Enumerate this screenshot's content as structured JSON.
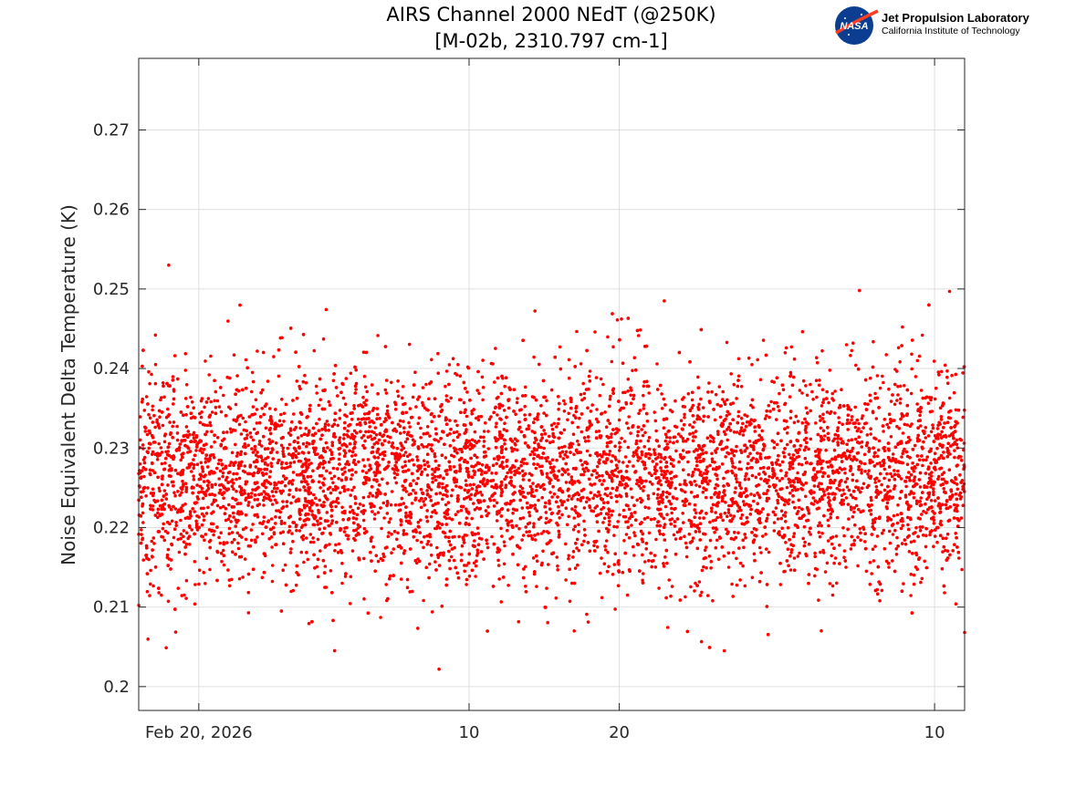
{
  "chart_data": {
    "type": "scatter",
    "title": "AIRS Channel 2000 NEdT (@250K)",
    "subtitle": "[M-02b, 2310.797 cm-1]",
    "xlabel": "",
    "ylabel": "Noise Equivalent Delta Temperature (K)",
    "xlim": [
      "2026-02-16",
      "2026-04-12"
    ],
    "ylim": [
      0.197,
      0.279
    ],
    "x_ticks": [
      {
        "date": "2026-02-20",
        "label": "Feb 20, 2026"
      },
      {
        "date": "2026-03-10",
        "label": "10"
      },
      {
        "date": "2026-03-20",
        "label": "20"
      },
      {
        "date": "2026-04-10",
        "label": "10"
      }
    ],
    "y_ticks": [
      0.2,
      0.21,
      0.22,
      0.23,
      0.24,
      0.25,
      0.26,
      0.27
    ],
    "y_tick_labels": [
      "0.2",
      "0.21",
      "0.22",
      "0.23",
      "0.24",
      "0.25",
      "0.26",
      "0.27"
    ],
    "grid": true,
    "series": [
      {
        "color": "#ff0000",
        "marker": "dot",
        "typical_value": 0.2265,
        "spread": 0.0065
      }
    ],
    "notable_points": [
      {
        "x": "2026-02-18",
        "y": 0.253
      },
      {
        "x": "2026-03-08",
        "y": 0.2022
      },
      {
        "x": "2026-03-23",
        "y": 0.2485
      },
      {
        "x": "2026-03-27",
        "y": 0.2045
      },
      {
        "x": "2026-04-05",
        "y": 0.2498
      },
      {
        "x": "2026-04-11",
        "y": 0.2497
      },
      {
        "x": "2026-04-12",
        "y": 0.2068
      }
    ]
  },
  "logo": {
    "org_name": "Jet Propulsion Laboratory",
    "org_sub": "California Institute of Technology",
    "badge_text": "NASA",
    "badge_color": "#0b3d91",
    "swoosh_color": "#fc3d21"
  }
}
